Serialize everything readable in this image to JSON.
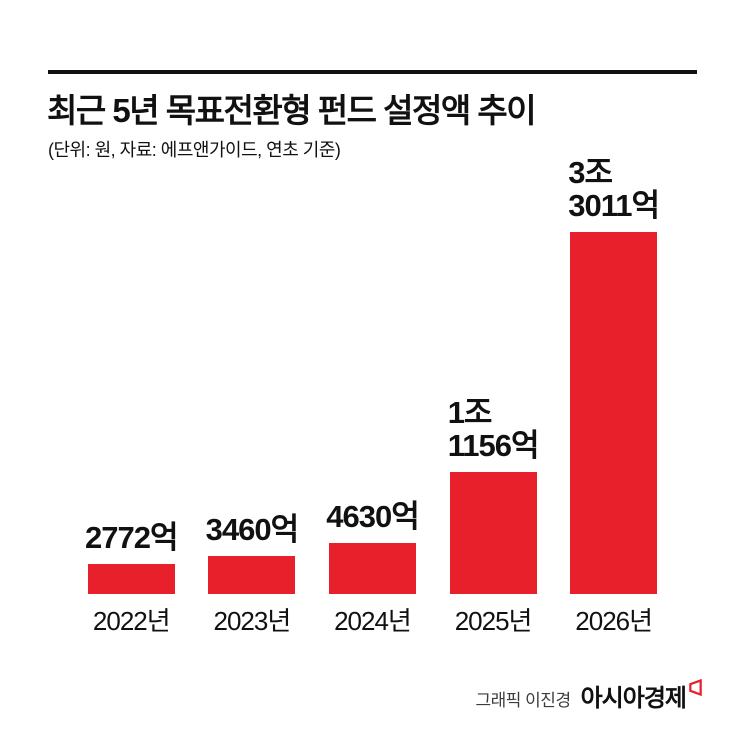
{
  "header": {
    "title": "최근 5년 목표전환형 펀드 설정액 추이",
    "subtitle": "(단위: 원, 자료: 에프앤가이드, 연초 기준)"
  },
  "chart_data": {
    "type": "bar",
    "title": "최근 5년 목표전환형 펀드 설정액 추이",
    "note": "(단위: 원, 자료: 에프앤가이드, 연초 기준)",
    "categories": [
      "2022년",
      "2023년",
      "2024년",
      "2025년",
      "2026년"
    ],
    "values": [
      2772,
      3460,
      4630,
      11156,
      33011
    ],
    "value_unit": "억 원",
    "value_labels": [
      "2772억",
      "3460억",
      "4630억",
      "1조\n1156억",
      "3조\n3011억"
    ],
    "bar_color": "#e7202c",
    "ylim": [
      0,
      33011
    ],
    "grid": false,
    "legend": "none",
    "xlabel": "",
    "ylabel": ""
  },
  "footer": {
    "credit": "그래픽 이진경",
    "brand": "아시아경제",
    "brand_mark_icon": "asiae-flag-icon",
    "brand_mark_color": "#e7202c"
  }
}
